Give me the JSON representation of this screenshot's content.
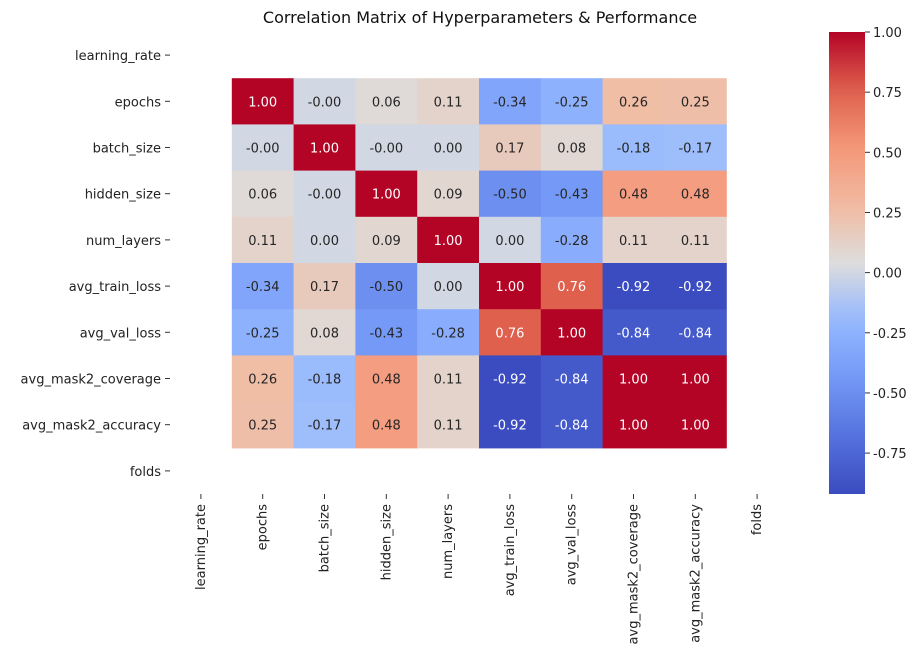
{
  "chart_data": {
    "type": "heatmap",
    "title": "Correlation Matrix of Hyperparameters & Performance",
    "labels": [
      "learning_rate",
      "epochs",
      "batch_size",
      "hidden_size",
      "num_layers",
      "avg_train_loss",
      "avg_val_loss",
      "avg_mask2_coverage",
      "avg_mask2_accuracy",
      "folds"
    ],
    "values": [
      [
        null,
        null,
        null,
        null,
        null,
        null,
        null,
        null,
        null,
        null
      ],
      [
        null,
        1.0,
        -0.0,
        0.06,
        0.11,
        -0.34,
        -0.25,
        0.26,
        0.25,
        null
      ],
      [
        null,
        -0.0,
        1.0,
        -0.0,
        0.0,
        0.17,
        0.08,
        -0.18,
        -0.17,
        null
      ],
      [
        null,
        0.06,
        -0.0,
        1.0,
        0.09,
        -0.5,
        -0.43,
        0.48,
        0.48,
        null
      ],
      [
        null,
        0.11,
        0.0,
        0.09,
        1.0,
        0.0,
        -0.28,
        0.11,
        0.11,
        null
      ],
      [
        null,
        -0.34,
        0.17,
        -0.5,
        0.0,
        1.0,
        0.76,
        -0.92,
        -0.92,
        null
      ],
      [
        null,
        -0.25,
        0.08,
        -0.43,
        -0.28,
        0.76,
        1.0,
        -0.84,
        -0.84,
        null
      ],
      [
        null,
        0.26,
        -0.18,
        0.48,
        0.11,
        -0.92,
        -0.84,
        1.0,
        1.0,
        null
      ],
      [
        null,
        0.25,
        -0.17,
        0.48,
        0.11,
        -0.92,
        -0.84,
        1.0,
        1.0,
        null
      ],
      [
        null,
        null,
        null,
        null,
        null,
        null,
        null,
        null,
        null,
        null
      ]
    ],
    "value_format": "2 decimals",
    "colormap": "coolwarm",
    "vmin": -0.92,
    "vmax": 1.0,
    "colorbar_ticks": [
      "1.00",
      "0.75",
      "0.50",
      "0.25",
      "0.00",
      "-0.25",
      "-0.50",
      "-0.75"
    ]
  }
}
